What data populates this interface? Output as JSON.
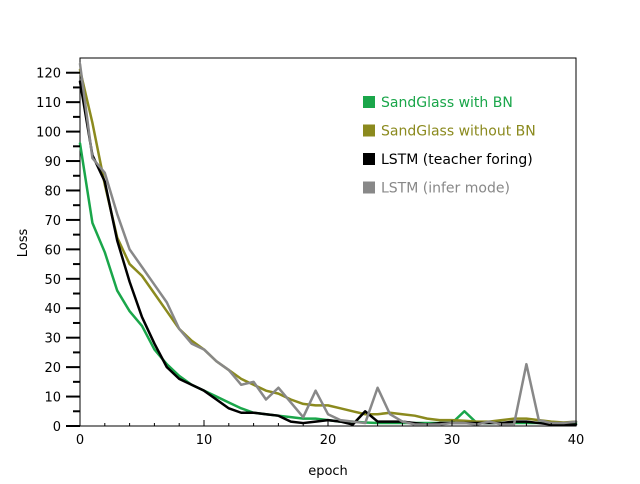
{
  "chart_data": {
    "type": "line",
    "title": "",
    "xlabel": "epoch",
    "ylabel": "Loss",
    "xlim": [
      0,
      40
    ],
    "ylim": [
      0,
      125
    ],
    "xticks": [
      0,
      10,
      20,
      30,
      40
    ],
    "yticks": [
      0,
      10,
      20,
      30,
      40,
      50,
      60,
      70,
      80,
      90,
      100,
      110,
      120
    ],
    "grid": false,
    "legend_position": "upper-right",
    "x": [
      0,
      1,
      2,
      3,
      4,
      5,
      6,
      7,
      8,
      9,
      10,
      11,
      12,
      13,
      14,
      15,
      16,
      17,
      18,
      19,
      20,
      21,
      22,
      23,
      24,
      25,
      26,
      27,
      28,
      29,
      30,
      31,
      32,
      33,
      34,
      35,
      36,
      37,
      38,
      39,
      40
    ],
    "series": [
      {
        "name": "SandGlass with BN",
        "color": "#1aa64a",
        "values": [
          96,
          69,
          59,
          46,
          39,
          34,
          26,
          21,
          17,
          14,
          12,
          10,
          8,
          6,
          4.5,
          4,
          3.5,
          3,
          2.5,
          2.5,
          2,
          1.5,
          1.5,
          1.2,
          1,
          1,
          1,
          1,
          1,
          1,
          1,
          5,
          1,
          1,
          1,
          1,
          1,
          1,
          1,
          1,
          1
        ]
      },
      {
        "name": "SandGlass without BN",
        "color": "#8b8a1e",
        "values": [
          121,
          103,
          82,
          64,
          55,
          51,
          45,
          39,
          33,
          29,
          26,
          22,
          19,
          16,
          14,
          12,
          11,
          9,
          7.5,
          7,
          7,
          6,
          5,
          4,
          4,
          4.5,
          4,
          3.5,
          2.5,
          2,
          2,
          1.8,
          1.5,
          1.5,
          2,
          2.5,
          2.5,
          2,
          1.5,
          1.2,
          1.5
        ]
      },
      {
        "name": "LSTM (teacher foring)",
        "color": "#000000",
        "values": [
          117,
          92,
          83,
          63,
          49,
          37,
          28,
          20,
          16,
          14,
          12,
          9,
          6,
          4.5,
          4.5,
          4,
          3.5,
          1.5,
          1,
          1.5,
          2,
          1.5,
          0.5,
          5,
          1.5,
          1.5,
          1.5,
          1,
          0.5,
          1,
          1,
          1,
          1,
          1,
          1,
          1.5,
          1.5,
          1,
          0.5,
          0.5,
          0.5
        ]
      },
      {
        "name": "LSTM (infer mode)",
        "color": "#888888",
        "values": [
          123,
          91,
          86,
          72,
          60,
          54,
          48,
          42,
          33,
          28,
          26,
          22,
          19,
          14,
          15,
          9,
          13,
          8,
          3,
          12,
          4,
          2,
          1.5,
          1,
          13,
          4,
          1.5,
          0.5,
          0.5,
          0.5,
          1,
          1,
          0.5,
          1.5,
          0.5,
          0.5,
          21,
          2,
          1,
          1,
          1.5
        ]
      }
    ]
  }
}
